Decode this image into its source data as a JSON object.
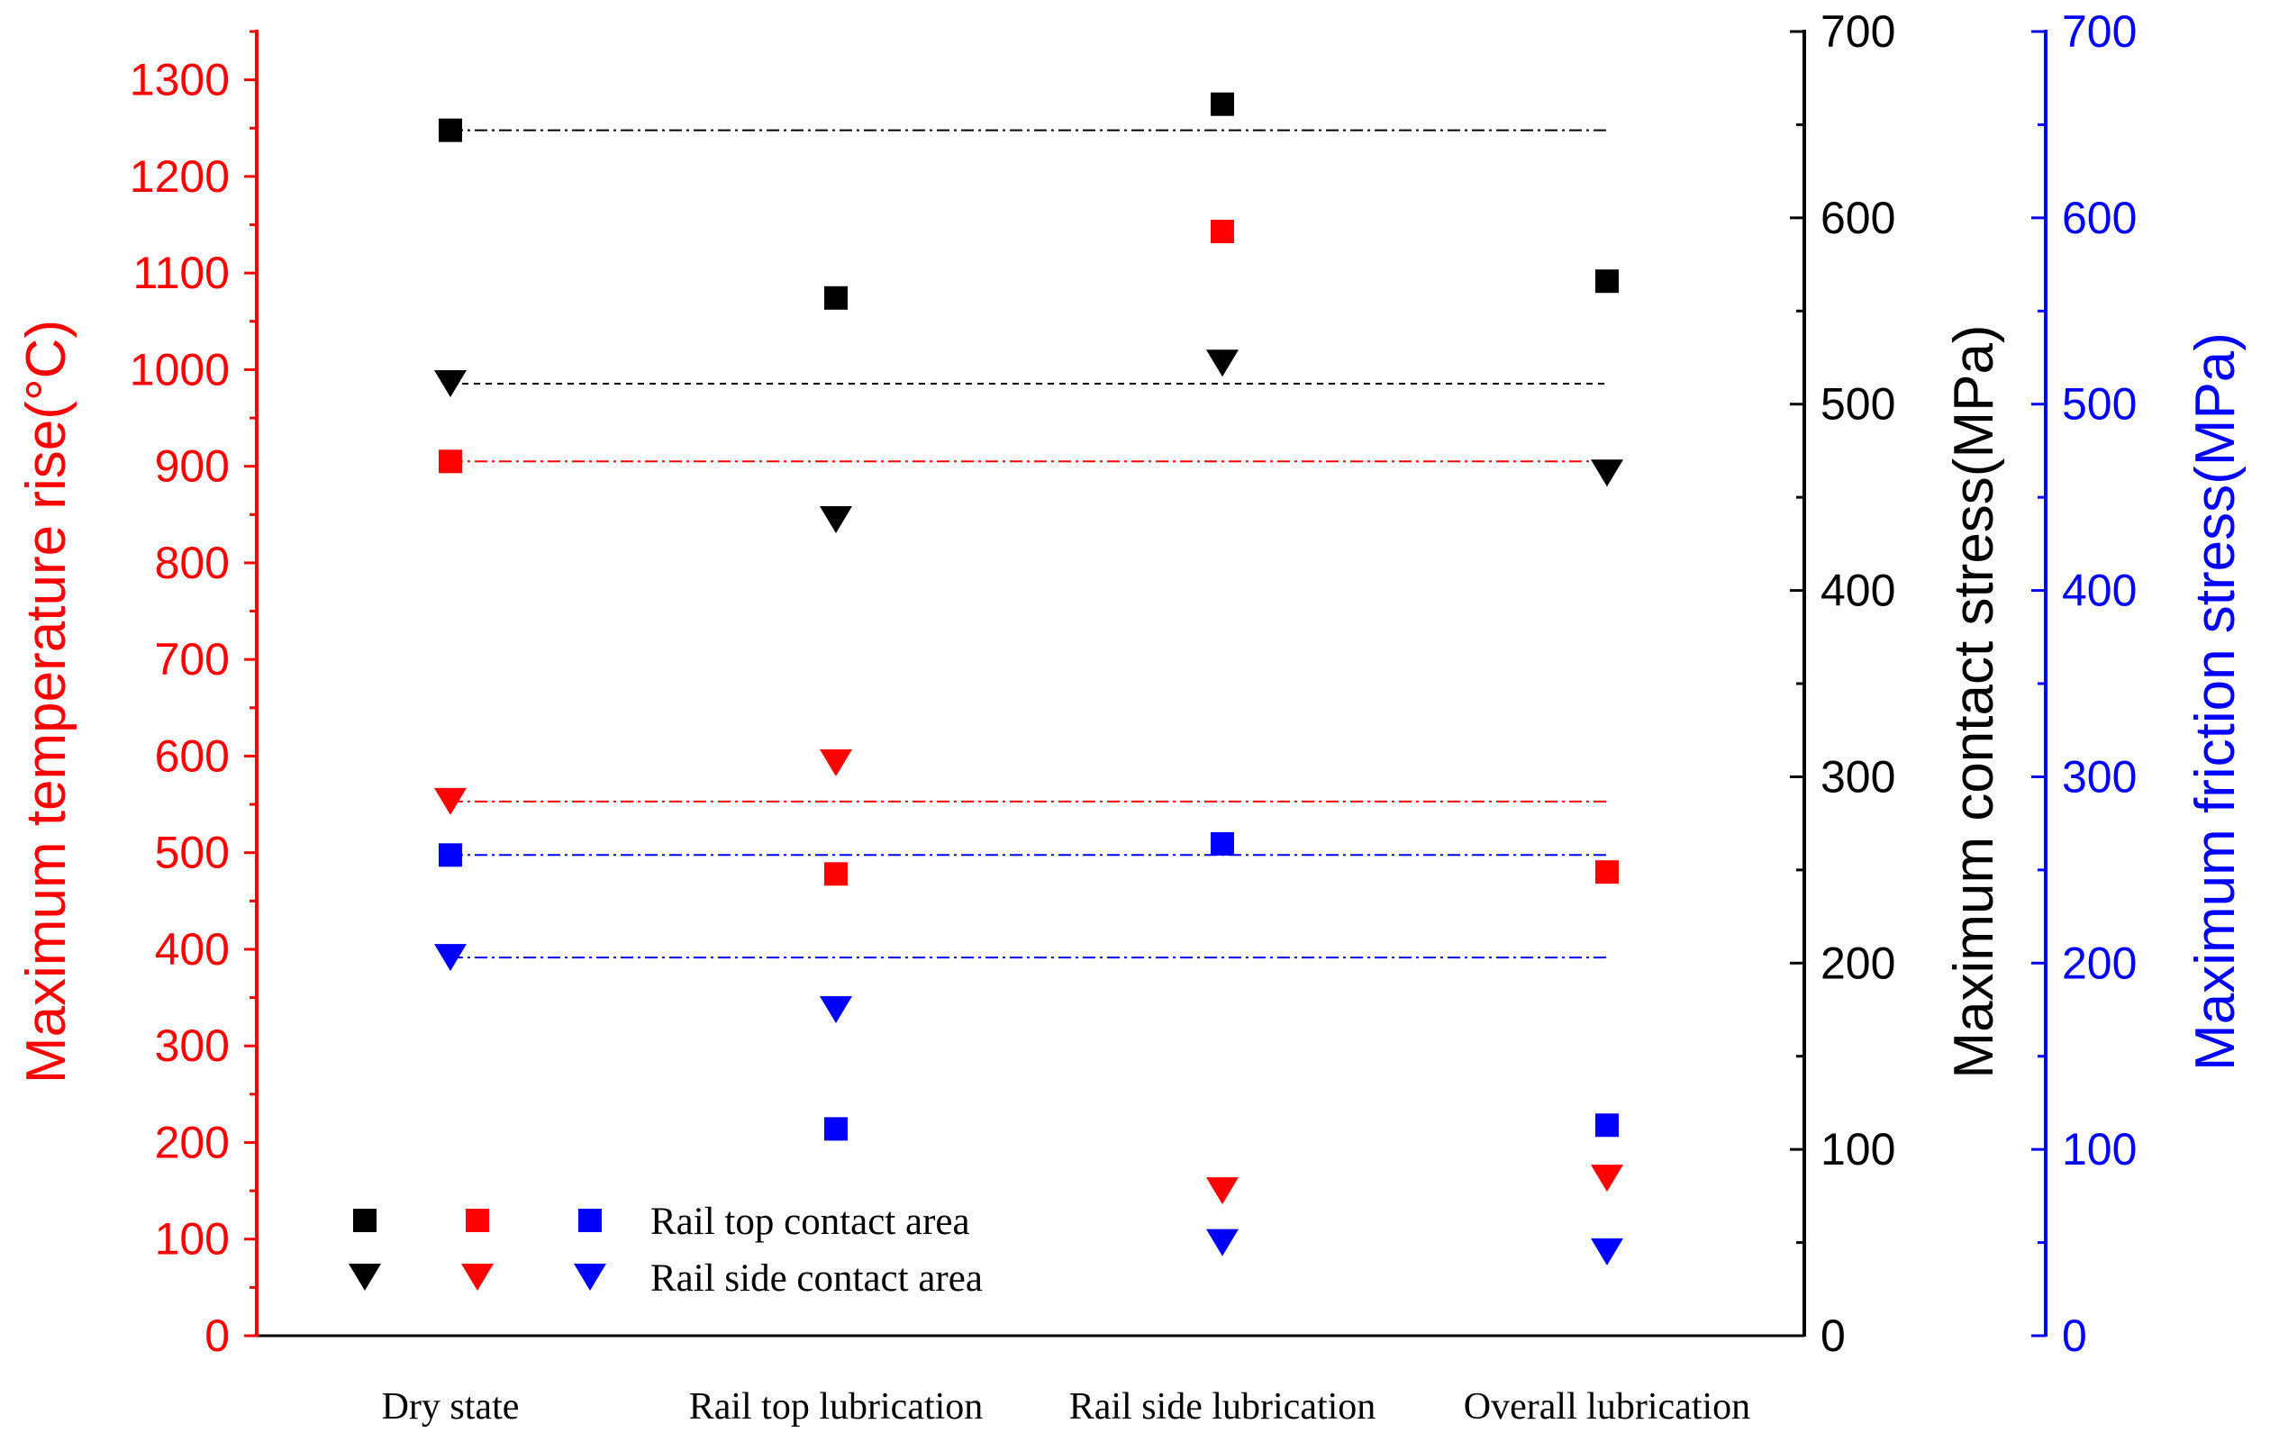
{
  "chart_data": {
    "type": "scatter",
    "categories": [
      "Dry state",
      "Rail top lubrication",
      "Rail side lubrication",
      "Overall lubrication"
    ],
    "axes": {
      "left": {
        "label": "Maximum temperature rise(°C)",
        "min": 0,
        "max": 1350,
        "ticks": [
          0,
          100,
          200,
          300,
          400,
          500,
          600,
          700,
          800,
          900,
          1000,
          1100,
          1200,
          1300
        ],
        "color": "#ff0000"
      },
      "right_contact": {
        "label": "Maximum contact stress(MPa)",
        "min": 0,
        "max": 700,
        "ticks": [
          0,
          100,
          200,
          300,
          400,
          500,
          600,
          700
        ],
        "color": "#000000"
      },
      "right_friction": {
        "label": "Maximum friction stress(MPa)",
        "min": 0,
        "max": 700,
        "ticks": [
          0,
          100,
          200,
          300,
          400,
          500,
          600,
          700
        ],
        "color": "#0000ff"
      }
    },
    "series": [
      {
        "name": "Rail top contact area - contact stress",
        "axis": "right_contact",
        "marker": "square",
        "color": "#000000",
        "values": [
          647,
          557,
          661,
          566
        ]
      },
      {
        "name": "Rail side contact area - contact stress",
        "axis": "right_contact",
        "marker": "triangle-down",
        "color": "#000000",
        "values": [
          511,
          438,
          522,
          463
        ]
      },
      {
        "name": "Rail top contact area - temperature rise",
        "axis": "left",
        "marker": "square",
        "color": "#ff0000",
        "values": [
          905,
          478,
          1143,
          480
        ]
      },
      {
        "name": "Rail side contact area - temperature rise",
        "axis": "left",
        "marker": "triangle-down",
        "color": "#ff0000",
        "values": [
          553,
          593,
          150,
          163
        ]
      },
      {
        "name": "Rail top contact area - friction stress",
        "axis": "right_friction",
        "marker": "square",
        "color": "#0000ff",
        "values": [
          258,
          111,
          264,
          113
        ]
      },
      {
        "name": "Rail side contact area - friction stress",
        "axis": "right_friction",
        "marker": "triangle-down",
        "color": "#0000ff",
        "values": [
          203,
          175,
          50,
          45
        ]
      }
    ],
    "reference_lines": [
      {
        "axis": "right_contact",
        "value": 647,
        "color": "#000000",
        "style": "dash-dot"
      },
      {
        "axis": "right_contact",
        "value": 511,
        "color": "#000000",
        "style": "dashed"
      },
      {
        "axis": "left",
        "value": 905,
        "color": "#ff0000",
        "style": "dash-dot"
      },
      {
        "axis": "left",
        "value": 553,
        "color": "#ff0000",
        "style": "dash-dot"
      },
      {
        "axis": "right_friction",
        "value": 258,
        "color": "#0000ff",
        "style": "dash-dot"
      },
      {
        "axis": "right_friction",
        "value": 203,
        "color": "#0000ff",
        "style": "dash-dot"
      }
    ],
    "legend": {
      "placement": "bottom-left",
      "entries": [
        {
          "label": "Rail top contact area",
          "marker": "square"
        },
        {
          "label": "Rail side contact area",
          "marker": "triangle-down"
        }
      ],
      "colors": [
        "#000000",
        "#ff0000",
        "#0000ff"
      ]
    }
  }
}
